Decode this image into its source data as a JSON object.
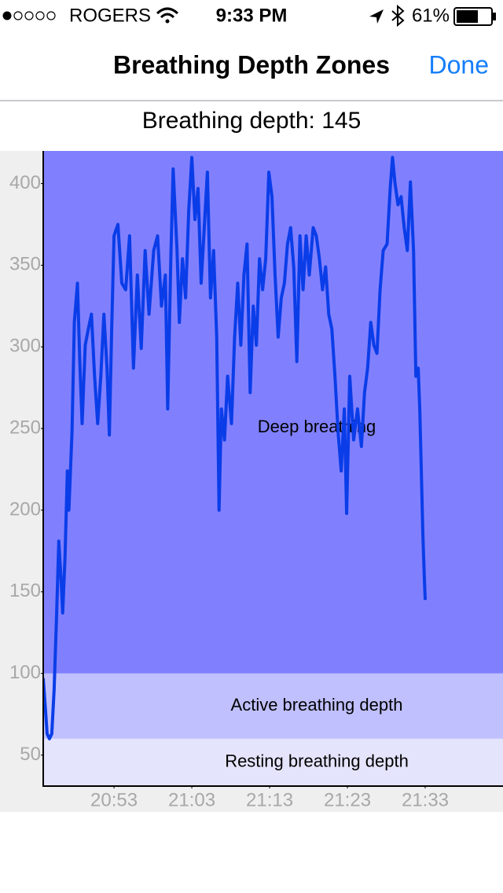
{
  "status_bar": {
    "carrier": "ROGERS",
    "time": "9:33 PM",
    "battery": "61%"
  },
  "nav_bar": {
    "title": "Breathing Depth Zones",
    "done": "Done"
  },
  "header": {
    "text": "Breathing depth: 145"
  },
  "chart_data": {
    "type": "line",
    "xlim": [
      1243.9,
      1303
    ],
    "ylim": [
      31,
      420
    ],
    "yticks": [
      50,
      100,
      150,
      200,
      250,
      300,
      350,
      400
    ],
    "xticks": [
      {
        "value": 1253,
        "label": "20:53"
      },
      {
        "value": 1263,
        "label": "21:03"
      },
      {
        "value": 1273,
        "label": "21:13"
      },
      {
        "value": 1283,
        "label": "21:23"
      },
      {
        "value": 1293,
        "label": "21:33"
      }
    ],
    "zones": [
      {
        "name": "Resting breathing depth",
        "max": 60,
        "color": "#e4e4fc"
      },
      {
        "name": "Active breathing depth",
        "min": 60,
        "max": 100,
        "color": "#c0c0ff"
      },
      {
        "name": "Deep breathing",
        "min": 100,
        "color": "#8080ff"
      }
    ],
    "color": "#0a3de8",
    "x": [
      1243.9,
      1244.2,
      1244.4,
      1244.7,
      1245.0,
      1245.3,
      1245.6,
      1245.9,
      1246.2,
      1246.4,
      1246.7,
      1247.0,
      1247.2,
      1247.6,
      1247.9,
      1248.3,
      1248.6,
      1248.9,
      1249.3,
      1249.7,
      1250.1,
      1250.5,
      1250.9,
      1251.3,
      1251.7,
      1252.1,
      1252.4,
      1252.7,
      1253.0,
      1253.5,
      1254.0,
      1254.5,
      1255.0,
      1255.5,
      1256.0,
      1256.5,
      1257.0,
      1257.5,
      1258.1,
      1258.6,
      1259.1,
      1259.6,
      1259.9,
      1260.3,
      1260.6,
      1261.1,
      1261.4,
      1261.8,
      1262.2,
      1262.6,
      1263.0,
      1263.4,
      1263.8,
      1264.2,
      1264.6,
      1265.0,
      1265.4,
      1265.8,
      1266.2,
      1266.5,
      1266.8,
      1267.2,
      1267.6,
      1268.1,
      1268.5,
      1268.9,
      1269.3,
      1269.7,
      1270.1,
      1270.5,
      1270.9,
      1271.3,
      1271.7,
      1272.1,
      1272.5,
      1272.9,
      1273.3,
      1273.7,
      1274.1,
      1274.5,
      1274.9,
      1275.3,
      1275.7,
      1276.1,
      1276.5,
      1276.9,
      1277.3,
      1277.7,
      1278.1,
      1278.6,
      1279.0,
      1279.4,
      1279.8,
      1280.2,
      1280.6,
      1281.0,
      1281.4,
      1281.8,
      1282.2,
      1282.6,
      1282.9,
      1283.3,
      1283.8,
      1284.3,
      1284.8,
      1285.2,
      1285.6,
      1286.0,
      1286.4,
      1286.8,
      1287.2,
      1287.6,
      1288.1,
      1288.5,
      1288.8,
      1289.1,
      1289.5,
      1289.9,
      1290.3,
      1290.7,
      1291.1,
      1291.5,
      1291.8,
      1292.1,
      1292.3,
      1292.5,
      1292.7,
      1292.9,
      1293.0
    ],
    "values": [
      97,
      77,
      63,
      60,
      63,
      90,
      133,
      181,
      157,
      137,
      171,
      224,
      200,
      248,
      315,
      339,
      291,
      253,
      301,
      311,
      320,
      282,
      253,
      282,
      320,
      287,
      246,
      311,
      368,
      375,
      339,
      335,
      368,
      287,
      344,
      299,
      359,
      320,
      359,
      368,
      325,
      344,
      262,
      354,
      409,
      359,
      315,
      354,
      330,
      383,
      416,
      378,
      397,
      339,
      373,
      407,
      330,
      359,
      306,
      200,
      262,
      243,
      282,
      253,
      306,
      339,
      301,
      344,
      363,
      272,
      325,
      301,
      354,
      335,
      354,
      407,
      392,
      344,
      306,
      330,
      339,
      363,
      373,
      349,
      291,
      368,
      335,
      368,
      344,
      373,
      368,
      354,
      335,
      349,
      320,
      311,
      282,
      248,
      224,
      262,
      198,
      282,
      243,
      262,
      239,
      272,
      287,
      315,
      301,
      296,
      335,
      359,
      363,
      397,
      416,
      401,
      387,
      392,
      373,
      359,
      401,
      359,
      282,
      287,
      262,
      224,
      185,
      157,
      145
    ]
  }
}
